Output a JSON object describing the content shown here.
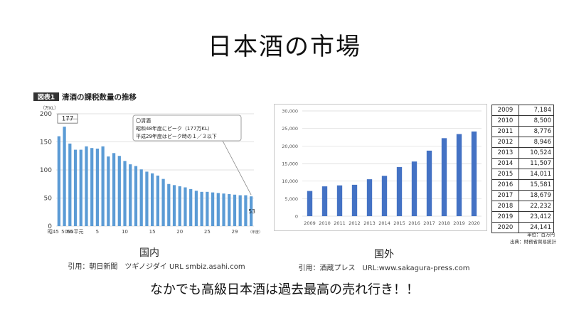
{
  "slide": {
    "title": "日本酒の市場",
    "label_domestic": "国内",
    "label_foreign": "国外",
    "source_domestic": "引用：朝日新聞　ツギノジダイ URL  smbiz.asahi.com",
    "source_foreign": "引用：酒蔵プレス　URL:www.sakagura-press.com",
    "conclusion": "なかでも高級日本酒は過去最高の売れ行き！！"
  },
  "colors": {
    "bar_left": "#5b9bd5",
    "bar_right": "#4472c4",
    "grid": "#d9d9d9",
    "badge": "#333333"
  },
  "chart_data": [
    {
      "type": "bar",
      "figure_badge": "図表1",
      "title": "清酒の課税数量の推移",
      "ylabel": "（万KL）",
      "ylim": [
        0,
        200
      ],
      "yticks": [
        "0",
        "50",
        "100",
        "150",
        "200"
      ],
      "xlabels": [
        "昭45",
        "50",
        "55",
        "60平元",
        "5",
        "10",
        "15",
        "20",
        "25",
        "29"
      ],
      "xunit": "（年度）",
      "annotation_peak_value": "177",
      "annotation_last_value": "53",
      "callout": {
        "line1": "〇清酒",
        "line2": "昭和48年度にピーク（177万KL）",
        "line3": "平成29年度はピーク時の１／３以下"
      },
      "series": [
        {
          "values": [
            160,
            177,
            147,
            136,
            136,
            142,
            139,
            138,
            142,
            124,
            130,
            125,
            116,
            110,
            107,
            101,
            97,
            94,
            90,
            84,
            75,
            73,
            71,
            69,
            66,
            63,
            61,
            61,
            60,
            59,
            58,
            57,
            56,
            55,
            55,
            53
          ]
        }
      ]
    },
    {
      "type": "bar",
      "ylim": [
        0,
        30000
      ],
      "yticks": [
        "0",
        "5,000",
        "10,000",
        "15,000",
        "20,000",
        "25,000",
        "30,000"
      ],
      "categories": [
        "2009",
        "2010",
        "2011",
        "2012",
        "2013",
        "2014",
        "2015",
        "2016",
        "2017",
        "2018",
        "2019",
        "2020"
      ],
      "series": [
        {
          "values": [
            7184,
            8500,
            8776,
            8946,
            10524,
            11507,
            14011,
            15581,
            18679,
            22232,
            23412,
            24141
          ]
        }
      ],
      "table": [
        [
          "2009",
          "7,184"
        ],
        [
          "2010",
          "8,500"
        ],
        [
          "2011",
          "8,776"
        ],
        [
          "2012",
          "8,946"
        ],
        [
          "2013",
          "10,524"
        ],
        [
          "2014",
          "11,507"
        ],
        [
          "2015",
          "14,011"
        ],
        [
          "2016",
          "15,581"
        ],
        [
          "2017",
          "18,679"
        ],
        [
          "2018",
          "22,232"
        ],
        [
          "2019",
          "23,412"
        ],
        [
          "2020",
          "24,141"
        ]
      ],
      "unit_note": "単位：百万円",
      "source_note": "出典：財務省貿易統計"
    }
  ]
}
